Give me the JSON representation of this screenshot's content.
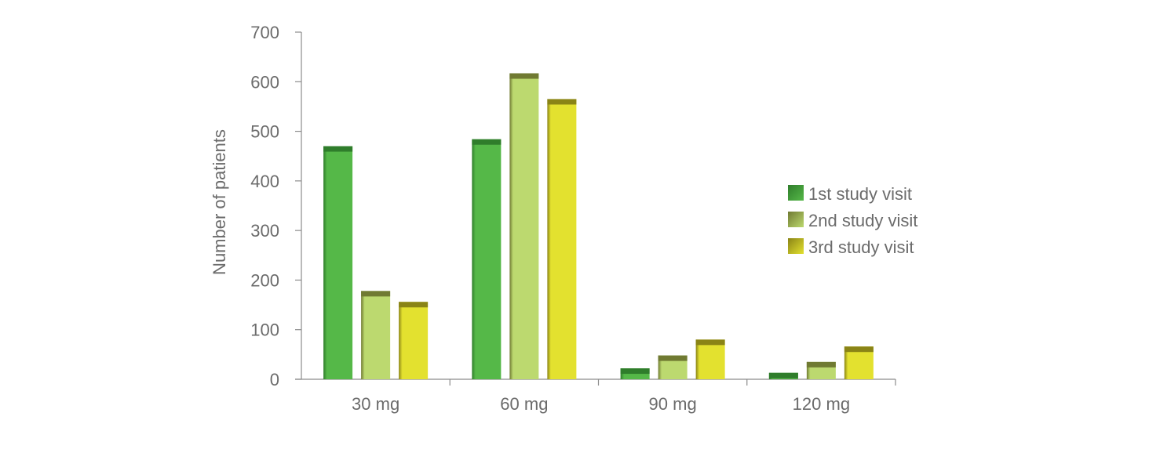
{
  "chart_data": {
    "type": "bar",
    "title": "",
    "xlabel": "",
    "ylabel": "Number of patients",
    "ylim": [
      0,
      700
    ],
    "yticks": [
      0,
      100,
      200,
      300,
      400,
      500,
      600,
      700
    ],
    "grid": false,
    "legend_position": "right",
    "categories": [
      "30 mg",
      "60 mg",
      "90 mg",
      "120 mg"
    ],
    "series": [
      {
        "name": "1st study visit",
        "values": [
          470,
          484,
          22,
          13
        ],
        "color": "#55b848",
        "top_color": "#2f7d2b"
      },
      {
        "name": "2nd study visit",
        "values": [
          178,
          617,
          48,
          35
        ],
        "color": "#bcd96f",
        "top_color": "#707a32"
      },
      {
        "name": "3rd study visit",
        "values": [
          156,
          565,
          80,
          66
        ],
        "color": "#e3e12f",
        "top_color": "#8a8416"
      }
    ]
  },
  "colors": {
    "axis": "#8c8c8c",
    "text": "#6b6b6b"
  }
}
